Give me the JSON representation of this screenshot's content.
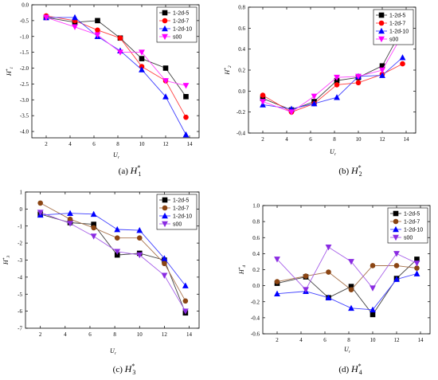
{
  "chart_data": [
    {
      "type": "line",
      "caption_tag": "(a)",
      "caption_var": "H",
      "caption_sup": "*",
      "caption_sub": "1",
      "ylabel": "H*1",
      "ylabel_main": "H",
      "ylabel_sup": "*",
      "ylabel_sub": "1",
      "xlabel": "U",
      "xlabel_sub": "r",
      "x": [
        2,
        4.4,
        6.3,
        8.2,
        10,
        12,
        13.7
      ],
      "xticks": [
        "2",
        "4",
        "6",
        "8",
        "10",
        "12",
        "14"
      ],
      "ylim": [
        -4.2,
        0.0
      ],
      "yticks": [
        "0.0",
        "-0.5",
        "-1.0",
        "-1.5",
        "-2.0",
        "-2.5",
        "-3.0",
        "-3.5",
        "-4.0"
      ],
      "legend_position": "top-right",
      "series": [
        {
          "name": "1-2d-5",
          "color": "#000000",
          "marker": "square",
          "values": [
            -0.4,
            -0.55,
            -0.5,
            -1.05,
            -1.7,
            -2.0,
            -2.9
          ]
        },
        {
          "name": "1-2d-7",
          "color": "#ff0000",
          "marker": "circle",
          "values": [
            -0.35,
            -0.5,
            -0.8,
            -1.05,
            -1.95,
            -2.4,
            -3.55
          ]
        },
        {
          "name": "1-2d-10",
          "color": "#0000ff",
          "marker": "triangle-up",
          "values": [
            -0.4,
            -0.4,
            -1.0,
            -1.45,
            -2.05,
            -2.9,
            -4.1
          ]
        },
        {
          "name": "s00",
          "color": "#ff00ff",
          "marker": "triangle-down",
          "values": [
            -0.4,
            -0.7,
            -0.95,
            -1.5,
            -1.5,
            -2.4,
            -2.55
          ]
        }
      ]
    },
    {
      "type": "line",
      "caption_tag": "(b)",
      "caption_var": "H",
      "caption_sup": "*",
      "caption_sub": "2",
      "ylabel": "H*2",
      "ylabel_main": "H",
      "ylabel_sup": "*",
      "ylabel_sub": "2",
      "xlabel": "U",
      "xlabel_sub": "r",
      "x": [
        2,
        4.4,
        6.3,
        8.2,
        10,
        12,
        13.7
      ],
      "xticks": [
        "2",
        "4",
        "6",
        "8",
        "10",
        "12",
        "14"
      ],
      "ylim": [
        -0.4,
        0.8
      ],
      "yticks": [
        "0.8",
        "0.6",
        "0.4",
        "0.2",
        "0.0",
        "-0.2",
        "-0.4"
      ],
      "legend_position": "top-right",
      "series": [
        {
          "name": "1-2d-5",
          "color": "#000000",
          "marker": "square",
          "values": [
            -0.07,
            -0.18,
            -0.1,
            0.1,
            0.13,
            0.24,
            0.6
          ]
        },
        {
          "name": "1-2d-7",
          "color": "#ff0000",
          "marker": "circle",
          "values": [
            -0.04,
            -0.2,
            -0.12,
            0.06,
            0.08,
            0.16,
            0.26
          ]
        },
        {
          "name": "1-2d-10",
          "color": "#0000ff",
          "marker": "triangle-up",
          "values": [
            -0.13,
            -0.17,
            -0.12,
            -0.06,
            0.14,
            0.15,
            0.32
          ]
        },
        {
          "name": "s00",
          "color": "#ff00ff",
          "marker": "triangle-down",
          "values": [
            -0.1,
            -0.2,
            -0.05,
            0.13,
            0.14,
            0.2,
            0.54
          ]
        }
      ]
    },
    {
      "type": "line",
      "caption_tag": "(c)",
      "caption_var": "H",
      "caption_sup": "*",
      "caption_sub": "3",
      "ylabel": "H*3",
      "ylabel_main": "H",
      "ylabel_sup": "*",
      "ylabel_sub": "3",
      "xlabel": "U",
      "xlabel_sub": "r",
      "x": [
        2,
        4.4,
        6.3,
        8.2,
        10,
        12,
        13.7
      ],
      "xticks": [
        "2",
        "4",
        "6",
        "8",
        "10",
        "12",
        "14"
      ],
      "ylim": [
        -7,
        1
      ],
      "yticks": [
        "1",
        "0",
        "-1",
        "-2",
        "-3",
        "-4",
        "-5",
        "-6",
        "-7"
      ],
      "legend_position": "top-right",
      "series": [
        {
          "name": "1-2d-5",
          "color": "#000000",
          "marker": "square",
          "values": [
            -0.3,
            -0.8,
            -0.9,
            -2.7,
            -2.6,
            -3.0,
            -6.1
          ]
        },
        {
          "name": "1-2d-7",
          "color": "#8b4513",
          "marker": "circle",
          "values": [
            0.35,
            -0.6,
            -1.1,
            -1.7,
            -1.7,
            -3.2,
            -5.4
          ]
        },
        {
          "name": "1-2d-10",
          "color": "#0000ff",
          "marker": "triangle-up",
          "values": [
            -0.35,
            -0.25,
            -0.3,
            -1.2,
            -1.25,
            -2.9,
            -4.5
          ]
        },
        {
          "name": "s00",
          "color": "#8a2be2",
          "marker": "triangle-down",
          "values": [
            -0.2,
            -0.85,
            -1.6,
            -2.5,
            -2.7,
            -3.9,
            -6.0
          ]
        }
      ]
    },
    {
      "type": "line",
      "caption_tag": "(d)",
      "caption_var": "H",
      "caption_sup": "*",
      "caption_sub": "4",
      "ylabel": "H*4",
      "ylabel_main": "H",
      "ylabel_sup": "*",
      "ylabel_sub": "4",
      "xlabel": "U",
      "xlabel_sub": "r",
      "x": [
        2,
        4.4,
        6.3,
        8.2,
        10,
        12,
        13.7
      ],
      "xticks": [
        "2",
        "4",
        "6",
        "8",
        "10",
        "12",
        "14"
      ],
      "ylim": [
        -0.6,
        1.0
      ],
      "yticks": [
        "1.0",
        "0.8",
        "0.6",
        "0.4",
        "0.2",
        "0.0",
        "-0.2",
        "-0.4",
        "-0.6"
      ],
      "legend_position": "top-right",
      "series": [
        {
          "name": "1-2d-5",
          "color": "#000000",
          "marker": "square",
          "values": [
            0.03,
            0.11,
            -0.15,
            -0.01,
            -0.36,
            0.09,
            0.33
          ]
        },
        {
          "name": "1-2d-7",
          "color": "#8b4513",
          "marker": "circle",
          "values": [
            0.05,
            0.12,
            0.17,
            -0.05,
            0.25,
            0.25,
            0.22
          ]
        },
        {
          "name": "1-2d-10",
          "color": "#0000ff",
          "marker": "triangle-up",
          "values": [
            -0.1,
            -0.07,
            -0.15,
            -0.28,
            -0.3,
            0.08,
            0.15
          ]
        },
        {
          "name": "s00",
          "color": "#8a2be2",
          "marker": "triangle-down",
          "values": [
            0.33,
            -0.05,
            0.48,
            0.3,
            -0.03,
            0.4,
            0.28
          ]
        }
      ]
    }
  ]
}
